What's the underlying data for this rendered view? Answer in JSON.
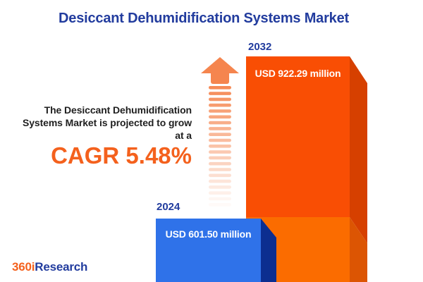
{
  "title": "Desiccant Dehumidification Systems Market",
  "intro": {
    "lines": [
      "The Desiccant Dehumidification",
      "Systems Market is projected to grow",
      "at a"
    ]
  },
  "cagr": {
    "label": "CAGR 5.48%"
  },
  "chart": {
    "bars": [
      {
        "year": "2024",
        "value_label": "USD 601.50 million"
      },
      {
        "year": "2032",
        "value_label": "USD 922.29 million"
      }
    ]
  },
  "chart_data": {
    "type": "bar",
    "title": "Desiccant Dehumidification Systems Market",
    "categories": [
      "2024",
      "2032"
    ],
    "values": [
      601.5,
      922.29
    ],
    "unit": "USD million",
    "value_labels": [
      "USD 601.50 million",
      "USD 922.29 million"
    ],
    "annotation": "The Desiccant Dehumidification Systems Market is projected to grow at a CAGR 5.48%",
    "cagr_percent": 5.48,
    "grid": false,
    "legend": "none",
    "axes": "none"
  },
  "logo": {
    "prefix": "360i",
    "suffix": "Research"
  },
  "colors": {
    "title_blue": "#223C9E",
    "text_dark": "#1F1F1F",
    "accent_orange": "#F4611D",
    "blue_front": "#2F72E9",
    "blue_side": "#0C2E90",
    "orange_front": "#F94E04",
    "orange_front_light": "#FB6C00",
    "orange_side": "#D64000",
    "orange_side_light": "#DC5503",
    "arrow": "#F5854E",
    "value_text": "#FFFFFF"
  }
}
